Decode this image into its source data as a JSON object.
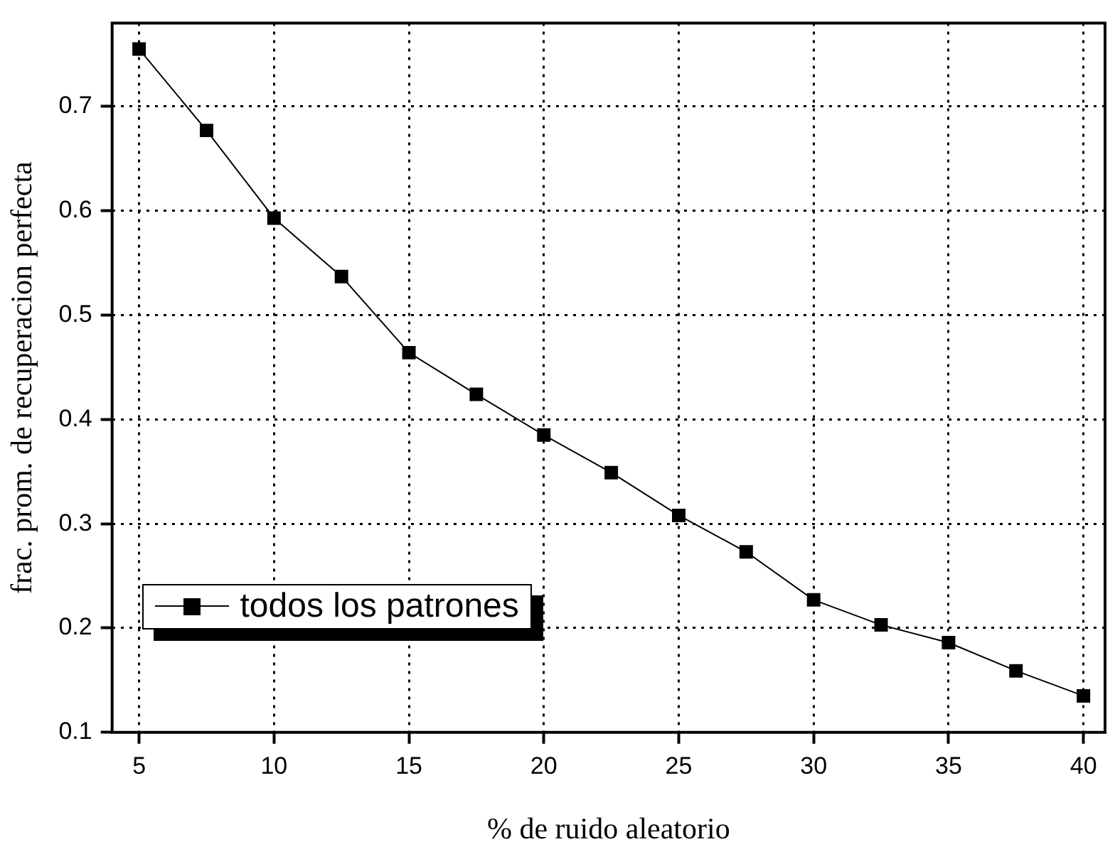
{
  "chart_data": {
    "type": "line",
    "xlabel": "% de ruido aleatorio",
    "ylabel": "frac. prom. de recuperacion perfecta",
    "x": [
      5,
      7.5,
      10,
      12.5,
      15,
      17.5,
      20,
      22.5,
      25,
      27.5,
      30,
      32.5,
      35,
      37.5,
      40
    ],
    "series": [
      {
        "name": "todos los patrones",
        "color": "#000000",
        "values": [
          0.755,
          0.677,
          0.593,
          0.537,
          0.464,
          0.424,
          0.385,
          0.349,
          0.308,
          0.273,
          0.227,
          0.203,
          0.186,
          0.159,
          0.135
        ]
      }
    ],
    "xlim": [
      4,
      40.8
    ],
    "xticks": [
      5,
      10,
      15,
      20,
      25,
      30,
      35,
      40
    ],
    "ylim": [
      0.1,
      0.78
    ],
    "yticks": [
      0.1,
      0.2,
      0.3,
      0.4,
      0.5,
      0.6,
      0.7
    ],
    "grid": true,
    "legend": "left",
    "marker": "square",
    "line_style": "solid"
  }
}
